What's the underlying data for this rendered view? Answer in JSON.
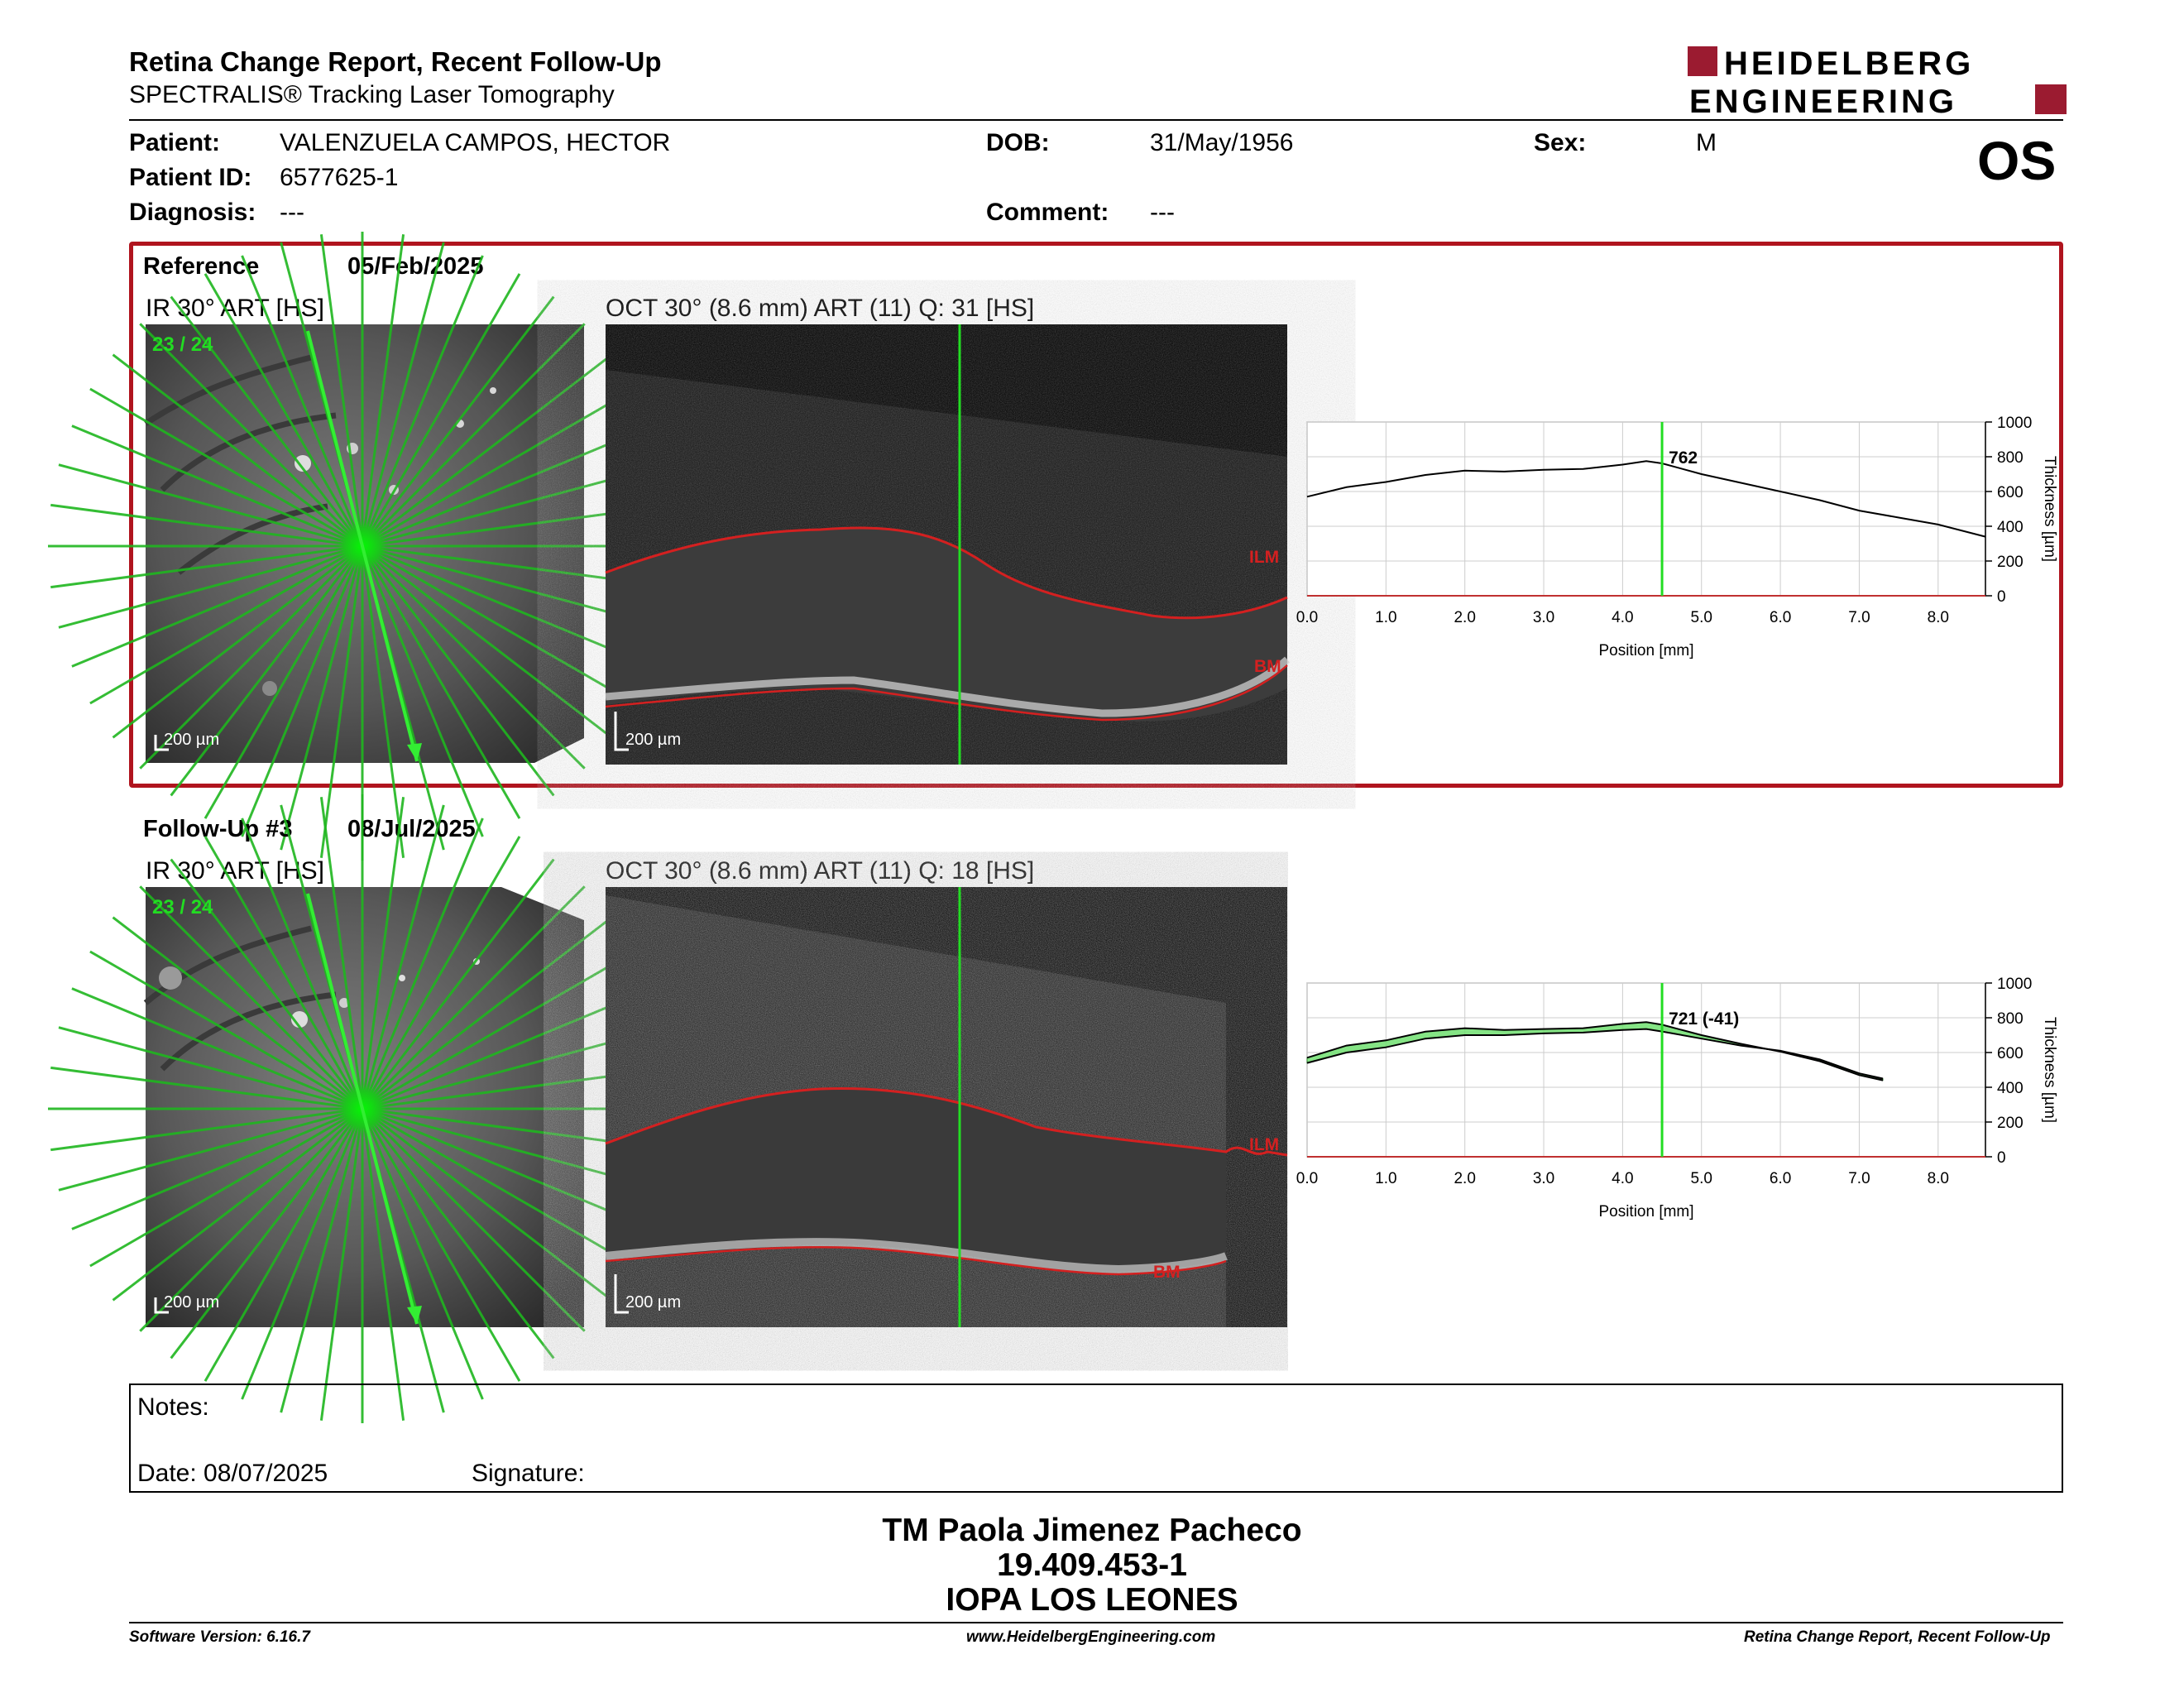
{
  "header": {
    "title": "Retina Change Report, Recent Follow-Up",
    "subtitle": "SPECTRALIS® Tracking Laser Tomography",
    "logo_line1": "HEIDELBERG",
    "logo_line2": "ENGINEERING"
  },
  "patient": {
    "patient_label": "Patient:",
    "patient_value": "VALENZUELA CAMPOS, HECTOR",
    "id_label": "Patient ID:",
    "id_value": "6577625-1",
    "diagnosis_label": "Diagnosis:",
    "diagnosis_value": "---",
    "dob_label": "DOB:",
    "dob_value": "31/May/1956",
    "comment_label": "Comment:",
    "comment_value": "---",
    "sex_label": "Sex:",
    "sex_value": "M",
    "eye": "OS"
  },
  "reference": {
    "label": "Reference",
    "date": "05/Feb/2025",
    "ir_label": "IR 30° ART [HS]",
    "oct_label": "OCT 30° (8.6 mm) ART (11) Q: 31 [HS]",
    "scan_counter": "23 / 24",
    "ir_scale": "200 µm",
    "oct_scale": "200 µm",
    "ilm_label": "ILM",
    "bm_label": "BM"
  },
  "followup": {
    "label": "Follow-Up #3",
    "date": "08/Jul/2025",
    "ir_label": "IR 30° ART [HS]",
    "oct_label": "OCT 30° (8.6 mm) ART (11) Q: 18 [HS]",
    "scan_counter": "23 / 24",
    "ir_scale": "200 µm",
    "oct_scale": "200 µm",
    "ilm_label": "ILM",
    "bm_label": "BM"
  },
  "chart_data": [
    {
      "type": "line",
      "xlabel": "Position [mm]",
      "ylabel": "Thickness [µm]",
      "xlim": [
        0,
        8.6
      ],
      "ylim": [
        0,
        1000
      ],
      "x_ticks": [
        "0.0",
        "1.0",
        "2.0",
        "3.0",
        "4.0",
        "5.0",
        "6.0",
        "7.0",
        "8.0"
      ],
      "y_ticks": [
        "0",
        "200",
        "400",
        "600",
        "800",
        "1000"
      ],
      "grid": true,
      "marker_x": 4.5,
      "marker_label": "762",
      "series": [
        {
          "x": [
            0,
            0.5,
            1.0,
            1.5,
            2.0,
            2.5,
            3.0,
            3.5,
            4.0,
            4.3,
            4.5,
            5.0,
            5.5,
            6.0,
            6.5,
            7.0,
            7.5,
            8.0,
            8.6
          ],
          "y": [
            570,
            625,
            655,
            695,
            720,
            715,
            725,
            730,
            755,
            775,
            762,
            700,
            650,
            600,
            550,
            490,
            450,
            410,
            340
          ]
        }
      ]
    },
    {
      "type": "line",
      "xlabel": "Position [mm]",
      "ylabel": "Thickness [µm]",
      "xlim": [
        0,
        8.6
      ],
      "ylim": [
        0,
        1000
      ],
      "x_ticks": [
        "0.0",
        "1.0",
        "2.0",
        "3.0",
        "4.0",
        "5.0",
        "6.0",
        "7.0",
        "8.0"
      ],
      "y_ticks": [
        "0",
        "200",
        "400",
        "600",
        "800",
        "1000"
      ],
      "grid": true,
      "marker_x": 4.5,
      "marker_label": "721 (-41)",
      "series": [
        {
          "name": "",
          "x": [
            0,
            0.5,
            1.0,
            1.5,
            2.0,
            2.5,
            3.0,
            3.5,
            4.0,
            4.3,
            4.5,
            5.0,
            5.5,
            6.0,
            6.5,
            7.0,
            7.3
          ],
          "y": [
            540,
            600,
            630,
            680,
            700,
            700,
            710,
            715,
            730,
            735,
            721,
            680,
            640,
            610,
            560,
            480,
            450
          ]
        },
        {
          "name": "",
          "x": [
            0,
            0.5,
            1.0,
            1.5,
            2.0,
            2.5,
            3.0,
            3.5,
            4.0,
            4.3,
            4.5,
            5.0,
            5.5,
            6.0,
            6.5,
            7.0,
            7.3
          ],
          "y": [
            570,
            640,
            670,
            720,
            740,
            730,
            735,
            740,
            765,
            775,
            760,
            700,
            650,
            605,
            550,
            470,
            440
          ]
        }
      ]
    }
  ],
  "notes": {
    "notes_label": "Notes:",
    "date_label": "Date: 08/07/2025",
    "signature_label": "Signature:"
  },
  "signature": {
    "name": "TM Paola Jimenez Pacheco",
    "rut": "19.409.453-1",
    "institution": "IOPA LOS LEONES"
  },
  "footer": {
    "software": "Software Version: 6.16.7",
    "website": "www.HeidelbergEngineering.com",
    "report": "Retina Change Report, Recent Follow-Up"
  },
  "colors": {
    "frame_red": "#b0141e",
    "scan_green": "#22dd22",
    "seg_red": "#d42020",
    "increase_green": "#70e070",
    "decrease_red": "#e07070"
  }
}
